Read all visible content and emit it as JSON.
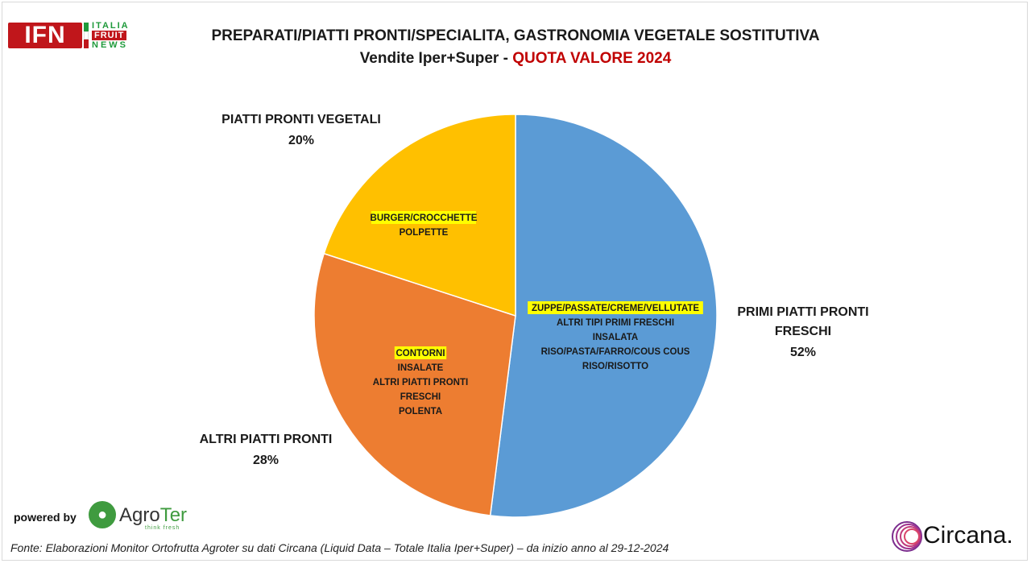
{
  "brand": {
    "logo_text": "IFN",
    "logo_words": [
      "ITALIA",
      "FRUIT",
      "NEWS"
    ],
    "flag_colors": [
      "#1f9a3b",
      "#ffffff",
      "#c0161b"
    ]
  },
  "header": {
    "title": "PREPARATI/PIATTI PRONTI/SPECIALITA, GASTRONOMIA VEGETALE SOSTITUTIVA",
    "subtitle_prefix": "Vendite Iper+Super - ",
    "subtitle_highlight": "QUOTA VALORE 2024"
  },
  "chart_data": {
    "type": "pie",
    "start_angle": "12 o'clock",
    "direction": "clockwise",
    "slices": [
      {
        "name_lines": [
          "PRIMI PIATTI PRONTI",
          "FRESCHI"
        ],
        "value": 52,
        "value_label": "52%",
        "color": "#5b9bd5",
        "inner_lines": [
          {
            "text": "ZUPPE/PASSATE/CREME/VELLUTATE",
            "highlight": true
          },
          {
            "text": "ALTRI TIPI PRIMI FRESCHI",
            "highlight": false
          },
          {
            "text": "INSALATA",
            "highlight": false
          },
          {
            "text": "RISO/PASTA/FARRO/COUS COUS",
            "highlight": false
          },
          {
            "text": "RISO/RISOTTO",
            "highlight": false
          }
        ]
      },
      {
        "name_lines": [
          "ALTRI PIATTI PRONTI"
        ],
        "value": 28,
        "value_label": "28%",
        "color": "#ed7d31",
        "inner_lines": [
          {
            "text": "CONTORNI",
            "highlight": true
          },
          {
            "text": "INSALATE",
            "highlight": false
          },
          {
            "text": "ALTRI PIATTI PRONTI",
            "highlight": false
          },
          {
            "text": "FRESCHI",
            "highlight": false
          },
          {
            "text": "POLENTA",
            "highlight": false
          }
        ]
      },
      {
        "name_lines": [
          "PIATTI PRONTI VEGETALI"
        ],
        "value": 20,
        "value_label": "20%",
        "color": "#ffc000",
        "inner_lines": [
          {
            "text": "BURGER/CROCCHETTE",
            "highlight": true
          },
          {
            "text": "POLPETTE",
            "highlight": false
          }
        ]
      }
    ],
    "highlight_color": "#ffff00"
  },
  "footer": {
    "powered_by": "powered by",
    "agroter_name_a": "Agro",
    "agroter_name_b": "Ter",
    "agroter_tagline": "think fresh",
    "source": "Fonte: Elaborazioni Monitor Ortofrutta Agroter su dati Circana (Liquid Data – Totale Italia Iper+Super) –  da inizio anno al 29-12-2024",
    "circana_name": "Circana."
  }
}
